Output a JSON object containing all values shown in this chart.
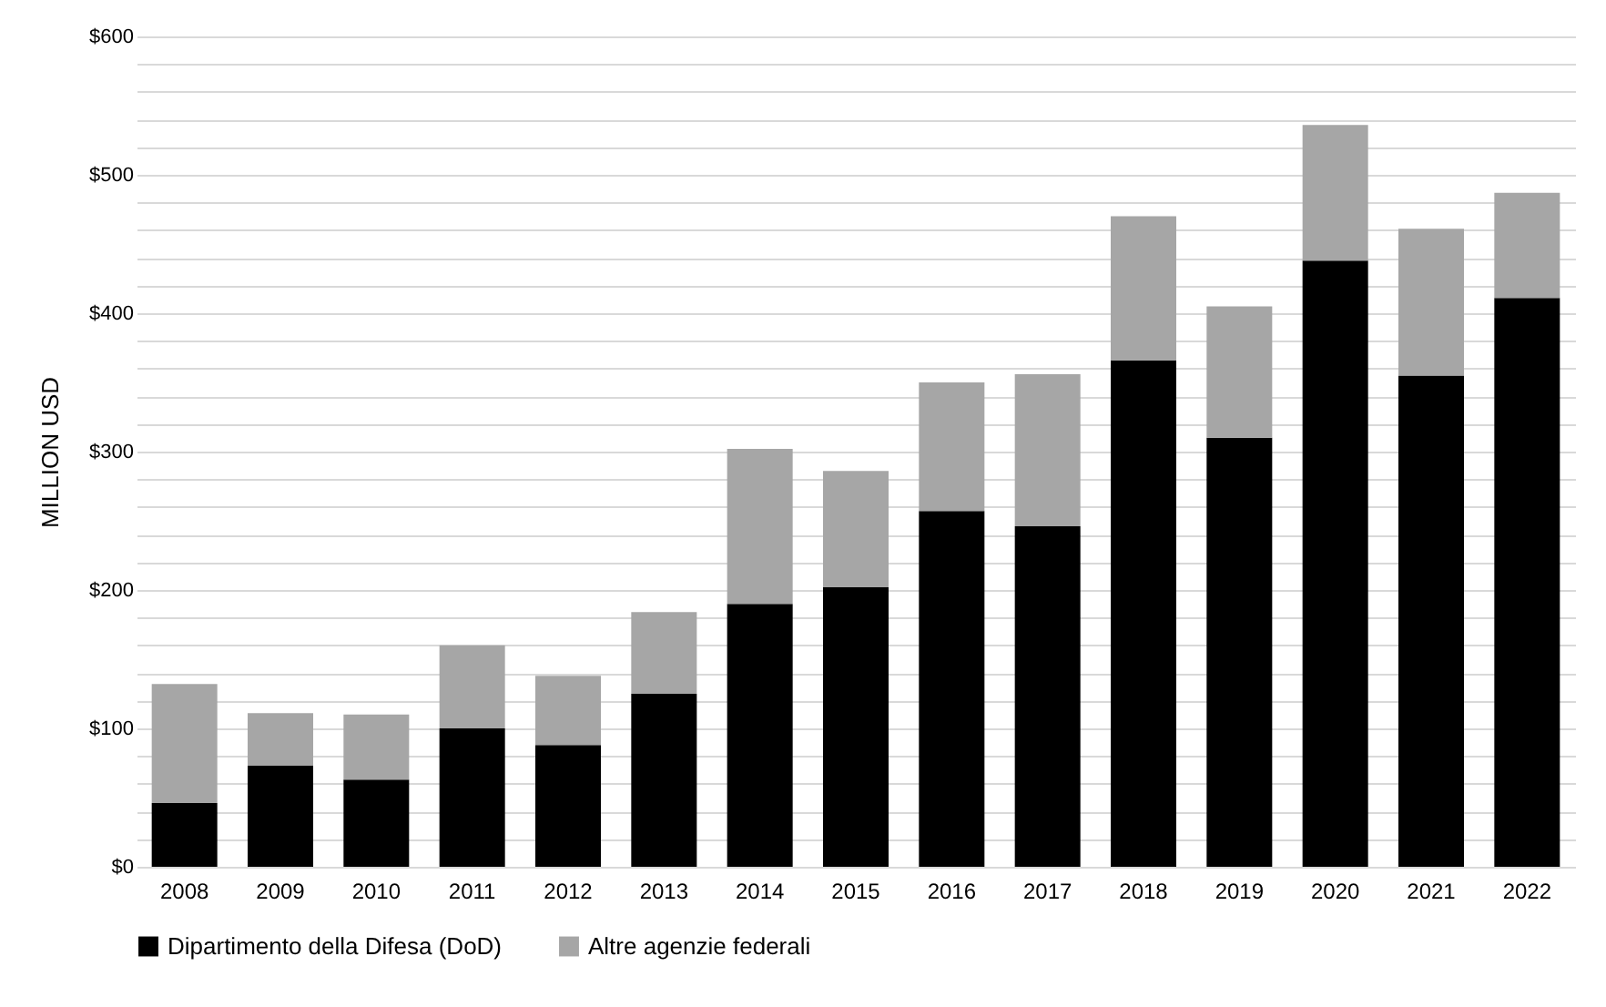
{
  "chart_data": {
    "type": "bar",
    "stacked": true,
    "ylabel": "MILLION USD",
    "categories": [
      "2008",
      "2009",
      "2010",
      "2011",
      "2012",
      "2013",
      "2014",
      "2015",
      "2016",
      "2017",
      "2018",
      "2019",
      "2020",
      "2021",
      "2022"
    ],
    "series": [
      {
        "name": "Dipartimento della Difesa (DoD)",
        "color": "#000000",
        "values": [
          46,
          73,
          63,
          100,
          88,
          125,
          190,
          202,
          257,
          246,
          366,
          310,
          438,
          355,
          411
        ]
      },
      {
        "name": "Altre agenzie federali",
        "color": "#a6a6a6",
        "values": [
          86,
          38,
          47,
          60,
          50,
          59,
          112,
          84,
          93,
          110,
          104,
          95,
          98,
          106,
          76
        ]
      }
    ],
    "ylim": [
      0,
      600
    ],
    "yticks": [
      {
        "value": 0,
        "label": "$0"
      },
      {
        "value": 20,
        "label": null
      },
      {
        "value": 40,
        "label": null
      },
      {
        "value": 60,
        "label": null
      },
      {
        "value": 80,
        "label": null
      },
      {
        "value": 100,
        "label": "$100"
      },
      {
        "value": 120,
        "label": null
      },
      {
        "value": 140,
        "label": null
      },
      {
        "value": 160,
        "label": null
      },
      {
        "value": 180,
        "label": null
      },
      {
        "value": 200,
        "label": "$200"
      },
      {
        "value": 220,
        "label": null
      },
      {
        "value": 240,
        "label": null
      },
      {
        "value": 260,
        "label": null
      },
      {
        "value": 280,
        "label": null
      },
      {
        "value": 300,
        "label": "$300"
      },
      {
        "value": 320,
        "label": null
      },
      {
        "value": 340,
        "label": null
      },
      {
        "value": 360,
        "label": null
      },
      {
        "value": 380,
        "label": null
      },
      {
        "value": 400,
        "label": "$400"
      },
      {
        "value": 420,
        "label": null
      },
      {
        "value": 440,
        "label": null
      },
      {
        "value": 460,
        "label": null
      },
      {
        "value": 480,
        "label": null
      },
      {
        "value": 500,
        "label": "$500"
      },
      {
        "value": 520,
        "label": null
      },
      {
        "value": 540,
        "label": null
      },
      {
        "value": 560,
        "label": null
      },
      {
        "value": 580,
        "label": null
      },
      {
        "value": 600,
        "label": "$600"
      }
    ],
    "grid": true,
    "legend": "bottom"
  }
}
